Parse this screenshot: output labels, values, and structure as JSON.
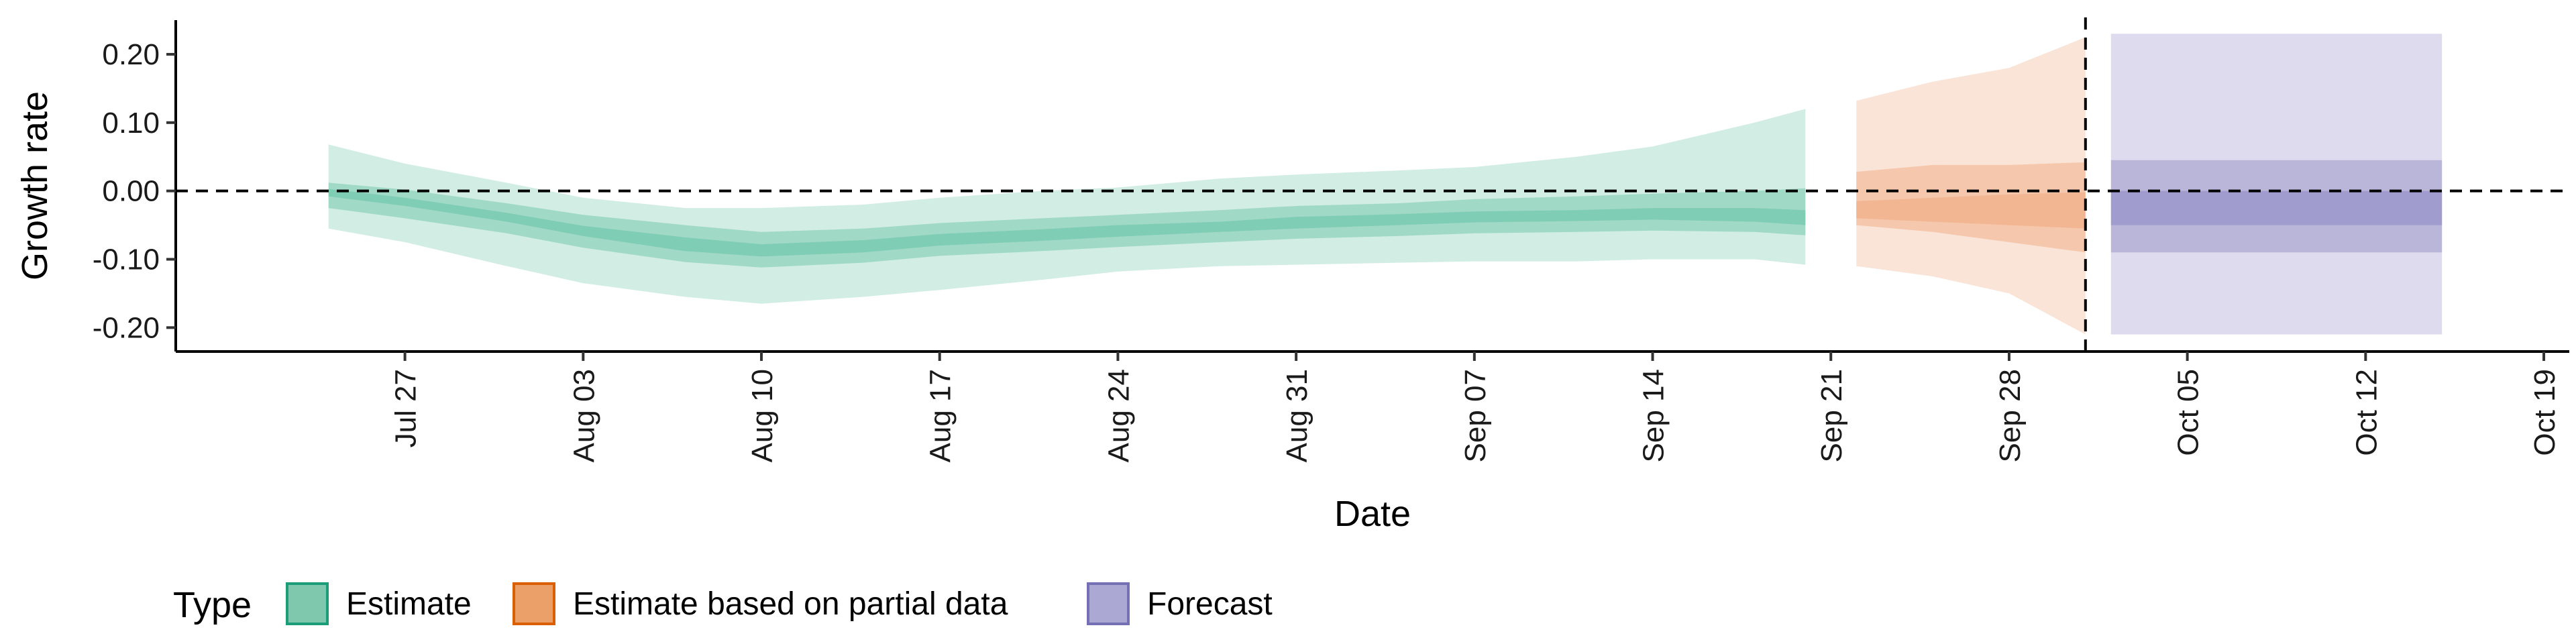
{
  "chart_data": {
    "type": "area",
    "xlabel": "Date",
    "ylabel": "Growth rate",
    "x_range": [
      "2020-07-18",
      "2020-10-20"
    ],
    "ylim": [
      -0.235,
      0.25
    ],
    "y_ticks": [
      {
        "value": 0.2,
        "label": "0.20"
      },
      {
        "value": 0.1,
        "label": "0.10"
      },
      {
        "value": 0.0,
        "label": "0.00"
      },
      {
        "value": -0.1,
        "label": "-0.10"
      },
      {
        "value": -0.2,
        "label": "-0.20"
      }
    ],
    "x_ticks": [
      {
        "date": "2020-07-27",
        "label": "Jul 27"
      },
      {
        "date": "2020-08-03",
        "label": "Aug 03"
      },
      {
        "date": "2020-08-10",
        "label": "Aug 10"
      },
      {
        "date": "2020-08-17",
        "label": "Aug 17"
      },
      {
        "date": "2020-08-24",
        "label": "Aug 24"
      },
      {
        "date": "2020-08-31",
        "label": "Aug 31"
      },
      {
        "date": "2020-09-07",
        "label": "Sep 07"
      },
      {
        "date": "2020-09-14",
        "label": "Sep 14"
      },
      {
        "date": "2020-09-21",
        "label": "Sep 21"
      },
      {
        "date": "2020-09-28",
        "label": "Sep 28"
      },
      {
        "date": "2020-10-05",
        "label": "Oct 05"
      },
      {
        "date": "2020-10-12",
        "label": "Oct 12"
      },
      {
        "date": "2020-10-19",
        "label": "Oct 19"
      }
    ],
    "hline": 0,
    "vline": "2020-10-01",
    "grid": false,
    "legend_position": "bottom-left",
    "legend": {
      "title": "Type",
      "entries": [
        {
          "label": "Estimate",
          "fill": "#7fc8ad",
          "stroke": "#1b9e77"
        },
        {
          "label": "Estimate based on partial data",
          "fill": "#eba06a",
          "stroke": "#d95f02"
        },
        {
          "label": "Forecast",
          "fill": "#aba8d3",
          "stroke": "#7570b3"
        }
      ]
    },
    "series": [
      {
        "type": "Estimate",
        "color": "#66c2a5",
        "points": [
          {
            "x": "2020-07-24",
            "lower90": -0.055,
            "lower50": -0.025,
            "lower20": -0.008,
            "upper20": 0.003,
            "upper50": 0.012,
            "upper90": 0.068
          },
          {
            "x": "2020-07-27",
            "lower90": -0.075,
            "lower50": -0.04,
            "lower20": -0.022,
            "upper20": -0.01,
            "upper50": 0.002,
            "upper90": 0.04
          },
          {
            "x": "2020-07-31",
            "lower90": -0.11,
            "lower50": -0.062,
            "lower20": -0.045,
            "upper20": -0.032,
            "upper50": -0.018,
            "upper90": 0.012
          },
          {
            "x": "2020-08-03",
            "lower90": -0.135,
            "lower50": -0.083,
            "lower20": -0.066,
            "upper20": -0.051,
            "upper50": -0.035,
            "upper90": -0.01
          },
          {
            "x": "2020-08-07",
            "lower90": -0.155,
            "lower50": -0.104,
            "lower20": -0.088,
            "upper20": -0.068,
            "upper50": -0.05,
            "upper90": -0.025
          },
          {
            "x": "2020-08-10",
            "lower90": -0.165,
            "lower50": -0.112,
            "lower20": -0.096,
            "upper20": -0.078,
            "upper50": -0.06,
            "upper90": -0.025
          },
          {
            "x": "2020-08-14",
            "lower90": -0.155,
            "lower50": -0.105,
            "lower20": -0.09,
            "upper20": -0.072,
            "upper50": -0.055,
            "upper90": -0.02
          },
          {
            "x": "2020-08-17",
            "lower90": -0.145,
            "lower50": -0.095,
            "lower20": -0.08,
            "upper20": -0.063,
            "upper50": -0.047,
            "upper90": -0.01
          },
          {
            "x": "2020-08-21",
            "lower90": -0.13,
            "lower50": -0.088,
            "lower20": -0.073,
            "upper20": -0.056,
            "upper50": -0.04,
            "upper90": 0.0
          },
          {
            "x": "2020-08-24",
            "lower90": -0.118,
            "lower50": -0.082,
            "lower20": -0.067,
            "upper20": -0.05,
            "upper50": -0.035,
            "upper90": 0.005
          },
          {
            "x": "2020-08-28",
            "lower90": -0.11,
            "lower50": -0.075,
            "lower20": -0.06,
            "upper20": -0.045,
            "upper50": -0.028,
            "upper90": 0.018
          },
          {
            "x": "2020-08-31",
            "lower90": -0.108,
            "lower50": -0.07,
            "lower20": -0.055,
            "upper20": -0.038,
            "upper50": -0.022,
            "upper90": 0.024
          },
          {
            "x": "2020-09-04",
            "lower90": -0.105,
            "lower50": -0.066,
            "lower20": -0.05,
            "upper20": -0.034,
            "upper50": -0.018,
            "upper90": 0.03
          },
          {
            "x": "2020-09-07",
            "lower90": -0.103,
            "lower50": -0.062,
            "lower20": -0.046,
            "upper20": -0.03,
            "upper50": -0.012,
            "upper90": 0.035
          },
          {
            "x": "2020-09-11",
            "lower90": -0.103,
            "lower50": -0.06,
            "lower20": -0.044,
            "upper20": -0.028,
            "upper50": -0.008,
            "upper90": 0.05
          },
          {
            "x": "2020-09-14",
            "lower90": -0.1,
            "lower50": -0.058,
            "lower20": -0.042,
            "upper20": -0.025,
            "upper50": -0.004,
            "upper90": 0.065
          },
          {
            "x": "2020-09-18",
            "lower90": -0.1,
            "lower50": -0.06,
            "lower20": -0.045,
            "upper20": -0.025,
            "upper50": 0.0,
            "upper90": 0.1
          },
          {
            "x": "2020-09-20",
            "lower90": -0.108,
            "lower50": -0.065,
            "lower20": -0.05,
            "upper20": -0.028,
            "upper50": 0.004,
            "upper90": 0.12
          }
        ]
      },
      {
        "type": "Estimate based on partial data",
        "color": "#f0a77b",
        "points": [
          {
            "x": "2020-09-22",
            "lower90": -0.11,
            "lower50": -0.05,
            "lower20": -0.04,
            "upper20": -0.015,
            "upper50": 0.028,
            "upper90": 0.132
          },
          {
            "x": "2020-09-25",
            "lower90": -0.125,
            "lower50": -0.06,
            "lower20": -0.045,
            "upper20": -0.01,
            "upper50": 0.038,
            "upper90": 0.16
          },
          {
            "x": "2020-09-28",
            "lower90": -0.15,
            "lower50": -0.075,
            "lower20": -0.05,
            "upper20": -0.005,
            "upper50": 0.038,
            "upper90": 0.18
          },
          {
            "x": "2020-10-01",
            "lower90": -0.21,
            "lower50": -0.09,
            "lower20": -0.055,
            "upper20": -0.002,
            "upper50": 0.042,
            "upper90": 0.225
          }
        ]
      },
      {
        "type": "Forecast",
        "color": "#8d89c4",
        "points": [
          {
            "x": "2020-10-02",
            "lower90": -0.21,
            "lower50": -0.09,
            "lower20": -0.05,
            "upper20": 0.0,
            "upper50": 0.045,
            "upper90": 0.23
          },
          {
            "x": "2020-10-15",
            "lower90": -0.21,
            "lower50": -0.09,
            "lower20": -0.05,
            "upper20": 0.0,
            "upper50": 0.045,
            "upper90": 0.23
          }
        ]
      }
    ]
  }
}
